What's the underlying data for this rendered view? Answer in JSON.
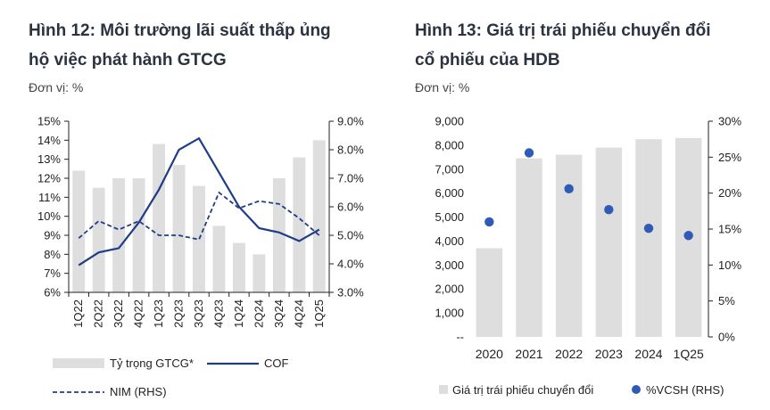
{
  "fig12": {
    "title_line1": "Hình 12: Môi trường lãi suất thấp ủng",
    "title_line2": "hộ việc phát hành GTCG",
    "unit": "Đơn vị: %"
  },
  "fig13": {
    "title_line1": "Hình 13: Giá trị trái phiếu chuyển đổi",
    "title_line2": "cổ phiếu của HDB",
    "unit": "Đơn vị: %"
  },
  "chart_data": [
    {
      "type": "bar",
      "id": "fig12",
      "categories": [
        "1Q22",
        "2Q22",
        "3Q22",
        "4Q22",
        "1Q23",
        "2Q23",
        "3Q23",
        "4Q23",
        "1Q24",
        "2Q24",
        "3Q24",
        "4Q24",
        "1Q25"
      ],
      "series": [
        {
          "name": "Tỷ trọng GTCG*",
          "type": "bar",
          "axis": "left",
          "values": [
            12.4,
            11.5,
            12.0,
            12.0,
            13.8,
            12.7,
            11.6,
            9.5,
            8.6,
            8.0,
            12.0,
            13.1,
            14.0
          ]
        },
        {
          "name": "COF",
          "type": "line",
          "axis": "right",
          "values": [
            3.95,
            4.4,
            4.55,
            5.45,
            6.6,
            8.0,
            8.4,
            7.2,
            6.0,
            5.25,
            5.1,
            4.8,
            5.2
          ]
        },
        {
          "name": "NIM (RHS)",
          "type": "line-dashed",
          "axis": "right",
          "values": [
            4.9,
            5.5,
            5.2,
            5.5,
            5.0,
            5.0,
            4.85,
            6.5,
            5.95,
            6.2,
            6.1,
            5.6,
            5.0
          ]
        }
      ],
      "y_left": {
        "min": 6,
        "max": 15,
        "ticks": [
          "6%",
          "7%",
          "8%",
          "9%",
          "10%",
          "11%",
          "12%",
          "13%",
          "14%",
          "15%"
        ]
      },
      "y_right": {
        "min": 3,
        "max": 9,
        "ticks": [
          "3.0%",
          "4.0%",
          "5.0%",
          "6.0%",
          "7.0%",
          "8.0%",
          "9.0%"
        ]
      },
      "legend": [
        "Tỷ trọng GTCG*",
        "COF",
        "NIM (RHS)"
      ]
    },
    {
      "type": "bar",
      "id": "fig13",
      "categories": [
        "2020",
        "2021",
        "2022",
        "2023",
        "2024",
        "1Q25"
      ],
      "series": [
        {
          "name": "Giá trị trái phiếu chuyển đổi",
          "type": "bar",
          "axis": "left",
          "values": [
            3700,
            7450,
            7600,
            7900,
            8250,
            8300
          ]
        },
        {
          "name": "%VCSH (RHS)",
          "type": "scatter",
          "axis": "right",
          "values": [
            16.0,
            25.6,
            20.6,
            17.7,
            15.1,
            14.1
          ]
        }
      ],
      "y_left": {
        "min": 0,
        "max": 9000,
        "ticks": [
          "--",
          "1,000",
          "2,000",
          "3,000",
          "4,000",
          "5,000",
          "6,000",
          "7,000",
          "8,000",
          "9,000"
        ]
      },
      "y_right": {
        "min": 0,
        "max": 30,
        "ticks": [
          "0%",
          "5%",
          "10%",
          "15%",
          "20%",
          "25%",
          "30%"
        ]
      },
      "legend": [
        "Giá trị trái phiếu chuyển đổi",
        "%VCSH (RHS)"
      ]
    }
  ],
  "colors": {
    "bar": "#dedede",
    "line": "#1f3c88",
    "dot": "#2f5bb7",
    "axis": "#222222"
  }
}
